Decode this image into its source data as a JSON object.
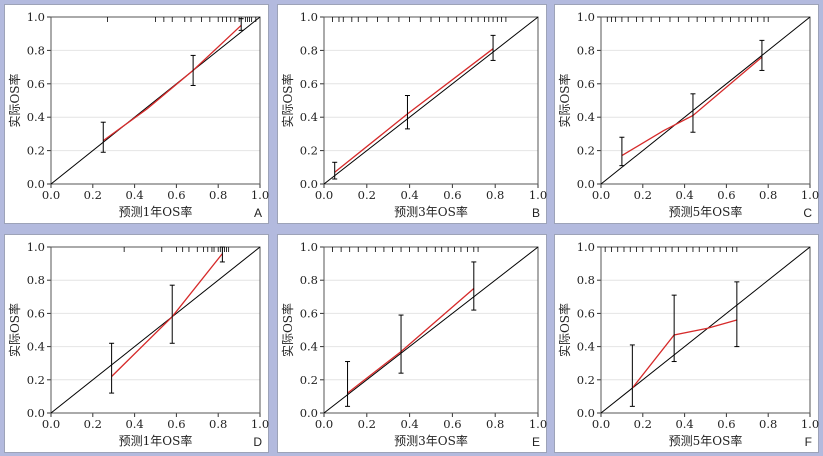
{
  "chart_data": [
    {
      "panel": "A",
      "type": "line",
      "xlabel": "预测1年OS率",
      "ylabel": "实际OS率",
      "xlim": [
        0,
        1
      ],
      "ylim": [
        0,
        1
      ],
      "xticks": [
        "0.0",
        "0.2",
        "0.4",
        "0.6",
        "0.8",
        "1.0"
      ],
      "yticks": [
        "0.0",
        "0.2",
        "0.4",
        "0.6",
        "0.8",
        "1.0"
      ],
      "reference_line": [
        [
          0,
          0
        ],
        [
          1,
          1
        ]
      ],
      "calibration": [
        [
          0.25,
          0.26
        ],
        [
          0.46,
          0.45
        ],
        [
          0.68,
          0.68
        ],
        [
          0.91,
          0.95
        ]
      ],
      "error_bars": [
        {
          "x": 0.25,
          "low": 0.19,
          "high": 0.37
        },
        {
          "x": 0.68,
          "low": 0.59,
          "high": 0.77
        },
        {
          "x": 0.91,
          "low": 0.92,
          "high": 0.99
        }
      ],
      "rug": [
        0.27,
        0.5,
        0.54,
        0.58,
        0.64,
        0.67,
        0.72,
        0.76,
        0.8,
        0.82,
        0.84,
        0.86,
        0.88,
        0.9,
        0.91,
        0.93,
        0.94,
        0.95,
        0.96,
        0.98
      ]
    },
    {
      "panel": "B",
      "type": "line",
      "xlabel": "预测3年OS率",
      "ylabel": "实际OS率",
      "xlim": [
        0,
        1
      ],
      "ylim": [
        0,
        1
      ],
      "xticks": [
        "0.0",
        "0.2",
        "0.4",
        "0.6",
        "0.8",
        "1.0"
      ],
      "yticks": [
        "0.0",
        "0.2",
        "0.4",
        "0.6",
        "0.8",
        "1.0"
      ],
      "reference_line": [
        [
          0,
          0
        ],
        [
          1,
          1
        ]
      ],
      "calibration": [
        [
          0.05,
          0.07
        ],
        [
          0.39,
          0.42
        ],
        [
          0.79,
          0.81
        ]
      ],
      "error_bars": [
        {
          "x": 0.05,
          "low": 0.03,
          "high": 0.13
        },
        {
          "x": 0.39,
          "low": 0.33,
          "high": 0.53
        },
        {
          "x": 0.79,
          "low": 0.74,
          "high": 0.89
        }
      ],
      "rug": [
        0.04,
        0.07,
        0.09,
        0.13,
        0.16,
        0.2,
        0.25,
        0.3,
        0.35,
        0.4,
        0.45,
        0.5,
        0.54,
        0.58,
        0.62,
        0.66,
        0.69,
        0.72,
        0.75,
        0.77,
        0.79,
        0.81,
        0.83,
        0.85
      ]
    },
    {
      "panel": "C",
      "type": "line",
      "xlabel": "预测5年OS率",
      "ylabel": "实际OS率",
      "xlim": [
        0,
        1
      ],
      "ylim": [
        0,
        1
      ],
      "xticks": [
        "0.0",
        "0.2",
        "0.4",
        "0.6",
        "0.8",
        "1.0"
      ],
      "yticks": [
        "0.0",
        "0.2",
        "0.4",
        "0.6",
        "0.8",
        "1.0"
      ],
      "reference_line": [
        [
          0,
          0
        ],
        [
          1,
          1
        ]
      ],
      "calibration": [
        [
          0.1,
          0.17
        ],
        [
          0.3,
          0.32
        ],
        [
          0.44,
          0.41
        ],
        [
          0.77,
          0.76
        ]
      ],
      "error_bars": [
        {
          "x": 0.1,
          "low": 0.11,
          "high": 0.28
        },
        {
          "x": 0.44,
          "low": 0.31,
          "high": 0.54
        },
        {
          "x": 0.77,
          "low": 0.68,
          "high": 0.86
        }
      ],
      "rug": [
        0.03,
        0.05,
        0.07,
        0.1,
        0.13,
        0.17,
        0.2,
        0.24,
        0.28,
        0.33,
        0.37,
        0.42,
        0.46,
        0.5,
        0.54,
        0.58,
        0.62,
        0.66,
        0.69,
        0.72,
        0.75,
        0.78,
        0.8
      ]
    },
    {
      "panel": "D",
      "type": "line",
      "xlabel": "预测1年OS率",
      "ylabel": "实际OS率",
      "xlim": [
        0,
        1
      ],
      "ylim": [
        0,
        1
      ],
      "xticks": [
        "0.0",
        "0.2",
        "0.4",
        "0.6",
        "0.8",
        "1.0"
      ],
      "yticks": [
        "0.0",
        "0.2",
        "0.4",
        "0.6",
        "0.8",
        "1.0"
      ],
      "reference_line": [
        [
          0,
          0
        ],
        [
          1,
          1
        ]
      ],
      "calibration": [
        [
          0.29,
          0.22
        ],
        [
          0.58,
          0.58
        ],
        [
          0.82,
          0.96
        ]
      ],
      "error_bars": [
        {
          "x": 0.29,
          "low": 0.12,
          "high": 0.42
        },
        {
          "x": 0.58,
          "low": 0.42,
          "high": 0.77
        },
        {
          "x": 0.82,
          "low": 0.91,
          "high": 1.0
        }
      ],
      "rug": [
        0.35,
        0.53,
        0.6,
        0.63,
        0.66,
        0.7,
        0.73,
        0.75,
        0.77,
        0.78,
        0.8,
        0.81,
        0.82,
        0.83,
        0.84,
        0.85
      ]
    },
    {
      "panel": "E",
      "type": "line",
      "xlabel": "预测3年OS率",
      "ylabel": "实际OS率",
      "xlim": [
        0,
        1
      ],
      "ylim": [
        0,
        1
      ],
      "xticks": [
        "0.0",
        "0.2",
        "0.4",
        "0.6",
        "0.8",
        "1.0"
      ],
      "yticks": [
        "0.0",
        "0.2",
        "0.4",
        "0.6",
        "0.8",
        "1.0"
      ],
      "reference_line": [
        [
          0,
          0
        ],
        [
          1,
          1
        ]
      ],
      "calibration": [
        [
          0.11,
          0.12
        ],
        [
          0.36,
          0.37
        ],
        [
          0.7,
          0.75
        ]
      ],
      "error_bars": [
        {
          "x": 0.11,
          "low": 0.04,
          "high": 0.31
        },
        {
          "x": 0.36,
          "low": 0.24,
          "high": 0.59
        },
        {
          "x": 0.7,
          "low": 0.62,
          "high": 0.91
        }
      ],
      "rug": [
        0.04,
        0.08,
        0.12,
        0.16,
        0.2,
        0.24,
        0.28,
        0.32,
        0.36,
        0.4,
        0.44,
        0.48,
        0.52,
        0.55,
        0.58,
        0.61,
        0.64,
        0.67,
        0.7,
        0.72
      ]
    },
    {
      "panel": "F",
      "type": "line",
      "xlabel": "预测5年OS率",
      "ylabel": "实际OS率",
      "xlim": [
        0,
        1
      ],
      "ylim": [
        0,
        1
      ],
      "xticks": [
        "0.0",
        "0.2",
        "0.4",
        "0.6",
        "0.8",
        "1.0"
      ],
      "yticks": [
        "0.0",
        "0.2",
        "0.4",
        "0.6",
        "0.8",
        "1.0"
      ],
      "reference_line": [
        [
          0,
          0
        ],
        [
          1,
          1
        ]
      ],
      "calibration": [
        [
          0.15,
          0.15
        ],
        [
          0.35,
          0.47
        ],
        [
          0.51,
          0.51
        ],
        [
          0.65,
          0.56
        ]
      ],
      "error_bars": [
        {
          "x": 0.15,
          "low": 0.04,
          "high": 0.41
        },
        {
          "x": 0.35,
          "low": 0.31,
          "high": 0.71
        },
        {
          "x": 0.65,
          "low": 0.4,
          "high": 0.79
        }
      ],
      "rug": [
        0.02,
        0.05,
        0.08,
        0.11,
        0.14,
        0.17,
        0.2,
        0.24,
        0.28,
        0.31,
        0.34,
        0.37,
        0.41,
        0.44,
        0.47,
        0.51,
        0.54,
        0.57,
        0.6,
        0.63,
        0.65
      ]
    }
  ],
  "colors": {
    "page_background": "#b3bade",
    "calibration_line": "#d62a2a",
    "reference_line": "#000000",
    "gridline": "#e4e4e4"
  }
}
